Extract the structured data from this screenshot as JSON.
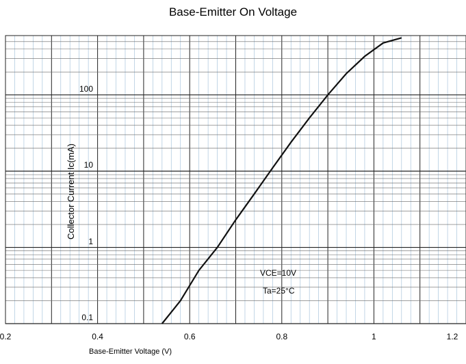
{
  "chart_data": {
    "type": "line",
    "title": "Base-Emitter On Voltage",
    "xlabel": "Base-Emitter Voltage (V)",
    "ylabel": "Collector Current   Ic(mA)",
    "xlim": [
      0.2,
      1.2
    ],
    "ylim": [
      0.1,
      600
    ],
    "yscale": "log",
    "x_ticks": [
      "0.2",
      "0.4",
      "0.6",
      "0.8",
      "1",
      "1.2"
    ],
    "y_ticks": [
      "0.1",
      "1",
      "10",
      "100"
    ],
    "annotations": [
      "VCE=10V",
      "Ta=25°C"
    ],
    "grid": true,
    "series": [
      {
        "x": [
          0.54,
          0.58,
          0.62,
          0.66,
          0.7,
          0.74,
          0.78,
          0.82,
          0.86,
          0.9,
          0.94,
          0.98,
          1.02,
          1.06
        ],
        "y": [
          0.1,
          0.2,
          0.5,
          1.0,
          2.3,
          5.0,
          11,
          24,
          50,
          100,
          190,
          320,
          480,
          560
        ]
      }
    ]
  }
}
